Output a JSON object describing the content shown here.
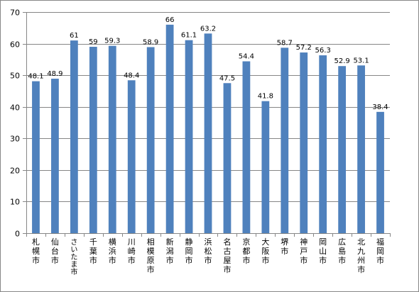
{
  "chart_data": {
    "type": "bar",
    "title": "",
    "xlabel": "",
    "ylabel": "",
    "ylim": [
      0,
      70
    ],
    "yticks": [
      0,
      10,
      20,
      30,
      40,
      50,
      60,
      70
    ],
    "grid": true,
    "legend": "none",
    "bar_color": "#4F81BD",
    "categories": [
      "札幌市",
      "仙台市",
      "さいたま市",
      "千葉市",
      "横浜市",
      "川崎市",
      "相模原市",
      "新潟市",
      "静岡市",
      "浜松市",
      "名古屋市",
      "京都市",
      "大阪市",
      "堺市",
      "神戸市",
      "岡山市",
      "広島市",
      "北九州市",
      "福岡市"
    ],
    "values": [
      48.1,
      48.9,
      61,
      59,
      59.3,
      48.4,
      58.9,
      66,
      61.1,
      63.2,
      47.5,
      54.4,
      41.8,
      58.7,
      57.2,
      56.3,
      52.9,
      53.1,
      38.4
    ],
    "value_labels": [
      "48.1",
      "48.9",
      "61",
      "59",
      "59.3",
      "48.4",
      "58.9",
      "66",
      "61.1",
      "63.2",
      "47.5",
      "54.4",
      "41.8",
      "58.7",
      "57.2",
      "56.3",
      "52.9",
      "53.1",
      "38.4"
    ]
  }
}
